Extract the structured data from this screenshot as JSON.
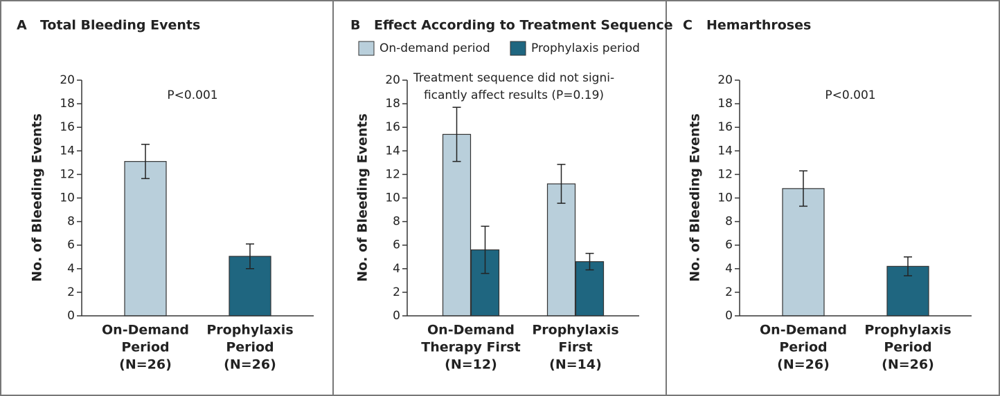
{
  "chart_data": [
    {
      "type": "bar",
      "panel": "A",
      "title": "Total Bleeding Events",
      "ylabel": "No. of Bleeding Events",
      "annotation": [
        "P<0.001"
      ],
      "categories": [
        [
          "On-Demand",
          "Period",
          "(N=26)"
        ],
        [
          "Prophylaxis",
          "Period",
          "(N=26)"
        ]
      ],
      "values": [
        13.1,
        5.05
      ],
      "errors": [
        1.45,
        1.05
      ],
      "colors": [
        "#b9cfdb",
        "#1f6680"
      ],
      "ylim": [
        0,
        20
      ],
      "yticks": [
        0,
        2,
        4,
        6,
        8,
        10,
        12,
        14,
        16,
        18,
        20
      ]
    },
    {
      "type": "grouped_bar",
      "panel": "B",
      "title": "Effect According to Treatment Sequence",
      "ylabel": "No. of Bleeding Events",
      "annotation": [
        "Treatment sequence did not signi-",
        "ficantly affect results (P=0.19)"
      ],
      "categories": [
        [
          "On-Demand",
          "Therapy First",
          "(N=12)"
        ],
        [
          "Prophylaxis",
          "First",
          "(N=14)"
        ]
      ],
      "series": [
        {
          "name": "On-demand period",
          "color": "#b9cfdb",
          "values": [
            15.4,
            11.2
          ],
          "errors": [
            2.3,
            1.65
          ]
        },
        {
          "name": "Prophylaxis period",
          "color": "#1f6680",
          "values": [
            5.6,
            4.6
          ],
          "errors": [
            2.0,
            0.7
          ]
        }
      ],
      "ylim": [
        0,
        20
      ],
      "yticks": [
        0,
        2,
        4,
        6,
        8,
        10,
        12,
        14,
        16,
        18,
        20
      ]
    },
    {
      "type": "bar",
      "panel": "C",
      "title": "Hemarthroses",
      "ylabel": "No. of Bleeding Events",
      "annotation": [
        "P<0.001"
      ],
      "categories": [
        [
          "On-Demand",
          "Period",
          "(N=26)"
        ],
        [
          "Prophylaxis",
          "Period",
          "(N=26)"
        ]
      ],
      "values": [
        10.8,
        4.2
      ],
      "errors": [
        1.5,
        0.8
      ],
      "colors": [
        "#b9cfdb",
        "#1f6680"
      ],
      "ylim": [
        0,
        20
      ],
      "yticks": [
        0,
        2,
        4,
        6,
        8,
        10,
        12,
        14,
        16,
        18,
        20
      ]
    }
  ]
}
